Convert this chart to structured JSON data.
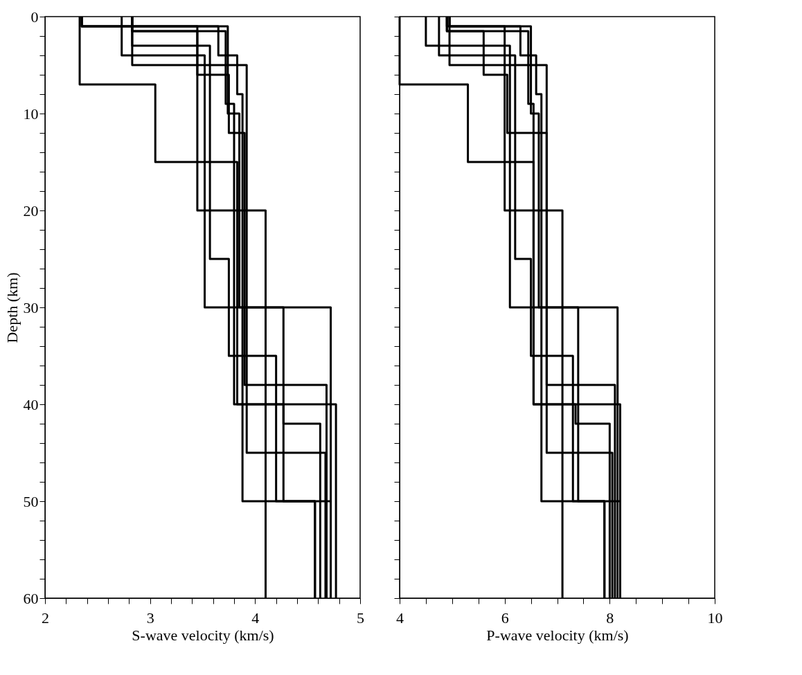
{
  "chart_data": [
    {
      "type": "line",
      "xlabel": "S-wave velocity (km/s)",
      "ylabel": "Depth (km)",
      "xlim": [
        2,
        5
      ],
      "ylim": [
        60,
        0
      ],
      "xticks": [
        2,
        {
          "value": 2.2,
          "label": null
        },
        {
          "value": 2.4,
          "label": null
        },
        {
          "value": 2.6,
          "label": null
        },
        {
          "value": 2.8,
          "label": null
        },
        3,
        {
          "value": 3.2,
          "label": null
        },
        {
          "value": 3.4,
          "label": null
        },
        {
          "value": 3.6,
          "label": null
        },
        {
          "value": 3.8,
          "label": null
        },
        4,
        {
          "value": 4.2,
          "label": null
        },
        {
          "value": 4.4,
          "label": null
        },
        {
          "value": 4.6,
          "label": null
        },
        {
          "value": 4.8,
          "label": null
        },
        5
      ],
      "yticks": [
        0,
        {
          "value": 2,
          "label": null
        },
        {
          "value": 4,
          "label": null
        },
        {
          "value": 6,
          "label": null
        },
        {
          "value": 8,
          "label": null
        },
        10,
        {
          "value": 12,
          "label": null
        },
        {
          "value": 14,
          "label": null
        },
        {
          "value": 16,
          "label": null
        },
        {
          "value": 18,
          "label": null
        },
        20,
        {
          "value": 22,
          "label": null
        },
        {
          "value": 24,
          "label": null
        },
        {
          "value": 26,
          "label": null
        },
        {
          "value": 28,
          "label": null
        },
        30,
        {
          "value": 32,
          "label": null
        },
        {
          "value": 34,
          "label": null
        },
        {
          "value": 36,
          "label": null
        },
        {
          "value": 38,
          "label": null
        },
        40,
        {
          "value": 42,
          "label": null
        },
        {
          "value": 44,
          "label": null
        },
        {
          "value": 46,
          "label": null
        },
        {
          "value": 48,
          "label": null
        },
        50,
        {
          "value": 52,
          "label": null
        },
        {
          "value": 54,
          "label": null
        },
        {
          "value": 56,
          "label": null
        },
        {
          "value": 58,
          "label": null
        },
        60
      ],
      "grid": false,
      "legend": false,
      "marker": "none",
      "line_style": "solid",
      "series": [
        {
          "color": "#000000",
          "x": [
            2.33,
            2.33,
            3.05,
            3.05,
            3.83,
            3.83,
            4.77,
            4.77
          ],
          "values": [
            0,
            7,
            7,
            15,
            15,
            40,
            40,
            60
          ]
        },
        {
          "color": "#000000",
          "x": [
            2.35,
            2.35,
            3.45,
            3.45,
            4.1,
            4.1
          ],
          "values": [
            0,
            1,
            1,
            20,
            20,
            60
          ]
        },
        {
          "color": "#000000",
          "x": [
            2.73,
            2.73,
            3.52,
            3.52,
            4.72,
            4.72
          ],
          "values": [
            0,
            4,
            4,
            30,
            30,
            60
          ]
        },
        {
          "color": "#000000",
          "x": [
            2.83,
            2.83,
            3.57,
            3.57,
            3.75,
            3.75,
            4.2,
            4.2,
            4.57,
            4.57
          ],
          "values": [
            0,
            3,
            3,
            25,
            25,
            35,
            35,
            50,
            50,
            60
          ]
        },
        {
          "color": "#000000",
          "x": [
            2.83,
            2.83,
            3.92,
            3.92,
            4.67,
            4.67
          ],
          "values": [
            0,
            5,
            5,
            45,
            45,
            60
          ]
        },
        {
          "color": "#000000",
          "x": [
            2.83,
            2.83,
            3.45,
            3.45,
            3.75,
            3.75,
            3.9,
            3.9,
            4.68,
            4.68
          ],
          "values": [
            0,
            1.5,
            1.5,
            6,
            6,
            12,
            12,
            38,
            38,
            60
          ]
        },
        {
          "color": "#000000",
          "x": [
            2.83,
            2.83,
            3.72,
            3.72,
            3.8,
            3.8,
            4.27,
            4.27,
            4.62,
            4.62
          ],
          "values": [
            0,
            1.5,
            1.5,
            9,
            9,
            40,
            40,
            42,
            42,
            60
          ]
        },
        {
          "color": "#000000",
          "x": [
            2.35,
            2.35,
            3.74,
            3.74,
            3.85,
            3.85,
            4.27,
            4.27,
            4.72,
            4.72
          ],
          "values": [
            0,
            1,
            1,
            10,
            10,
            30,
            30,
            50,
            50,
            60
          ]
        },
        {
          "color": "#000000",
          "x": [
            2.35,
            2.35,
            3.65,
            3.65,
            3.83,
            3.83,
            3.88,
            3.88,
            4.57,
            4.57
          ],
          "values": [
            0,
            1,
            1,
            4,
            4,
            8,
            8,
            50,
            50,
            60
          ]
        }
      ]
    },
    {
      "type": "line",
      "xlabel": "P-wave velocity (km/s)",
      "xlim": [
        4,
        10
      ],
      "ylim": [
        60,
        0
      ],
      "tick_labels": "x",
      "xticks": [
        4,
        {
          "value": 4.5,
          "label": null
        },
        {
          "value": 5,
          "label": null
        },
        {
          "value": 5.5,
          "label": null
        },
        6,
        {
          "value": 6.5,
          "label": null
        },
        {
          "value": 7,
          "label": null
        },
        {
          "value": 7.5,
          "label": null
        },
        8,
        {
          "value": 8.5,
          "label": null
        },
        {
          "value": 9,
          "label": null
        },
        {
          "value": 9.5,
          "label": null
        },
        10
      ],
      "yticks": [
        0,
        {
          "value": 2,
          "label": null
        },
        {
          "value": 4,
          "label": null
        },
        {
          "value": 6,
          "label": null
        },
        {
          "value": 8,
          "label": null
        },
        10,
        {
          "value": 12,
          "label": null
        },
        {
          "value": 14,
          "label": null
        },
        {
          "value": 16,
          "label": null
        },
        {
          "value": 18,
          "label": null
        },
        20,
        {
          "value": 22,
          "label": null
        },
        {
          "value": 24,
          "label": null
        },
        {
          "value": 26,
          "label": null
        },
        {
          "value": 28,
          "label": null
        },
        30,
        {
          "value": 32,
          "label": null
        },
        {
          "value": 34,
          "label": null
        },
        {
          "value": 36,
          "label": null
        },
        {
          "value": 38,
          "label": null
        },
        40,
        {
          "value": 42,
          "label": null
        },
        {
          "value": 44,
          "label": null
        },
        {
          "value": 46,
          "label": null
        },
        {
          "value": 48,
          "label": null
        },
        50,
        {
          "value": 52,
          "label": null
        },
        {
          "value": 54,
          "label": null
        },
        {
          "value": 56,
          "label": null
        },
        {
          "value": 58,
          "label": null
        },
        60
      ],
      "grid": false,
      "legend": false,
      "marker": "none",
      "line_style": "solid",
      "series": [
        {
          "color": "#000000",
          "x": [
            4.0,
            4.0,
            5.3,
            5.3,
            6.55,
            6.55,
            8.2,
            8.2
          ],
          "values": [
            0,
            7,
            7,
            15,
            15,
            40,
            40,
            60
          ]
        },
        {
          "color": "#000000",
          "x": [
            4.9,
            4.9,
            6.0,
            6.0,
            7.1,
            7.1
          ],
          "values": [
            0,
            1,
            1,
            20,
            20,
            60
          ]
        },
        {
          "color": "#000000",
          "x": [
            4.5,
            4.5,
            6.1,
            6.1,
            8.15,
            8.15
          ],
          "values": [
            0,
            3,
            3,
            30,
            30,
            60
          ]
        },
        {
          "color": "#000000",
          "x": [
            4.75,
            4.75,
            6.2,
            6.2,
            6.5,
            6.5,
            7.3,
            7.3,
            7.9,
            7.9
          ],
          "values": [
            0,
            4,
            4,
            25,
            25,
            35,
            35,
            50,
            50,
            60
          ]
        },
        {
          "color": "#000000",
          "x": [
            4.95,
            4.95,
            6.8,
            6.8,
            8.05,
            8.05
          ],
          "values": [
            0,
            5,
            5,
            45,
            45,
            60
          ]
        },
        {
          "color": "#000000",
          "x": [
            4.9,
            4.9,
            5.6,
            5.6,
            6.05,
            6.05,
            6.8,
            6.8,
            8.1,
            8.1
          ],
          "values": [
            0,
            1.5,
            1.5,
            6,
            6,
            12,
            12,
            38,
            38,
            60
          ]
        },
        {
          "color": "#000000",
          "x": [
            4.9,
            4.9,
            6.45,
            6.45,
            6.55,
            6.55,
            7.35,
            7.35,
            8.0,
            8.0
          ],
          "values": [
            0,
            1.5,
            1.5,
            9,
            9,
            40,
            40,
            42,
            42,
            60
          ]
        },
        {
          "color": "#000000",
          "x": [
            4.95,
            4.95,
            6.5,
            6.5,
            6.65,
            6.65,
            7.4,
            7.4,
            8.2,
            8.2
          ],
          "values": [
            0,
            1,
            1,
            10,
            10,
            30,
            30,
            50,
            50,
            60
          ]
        },
        {
          "color": "#000000",
          "x": [
            4.95,
            4.95,
            6.3,
            6.3,
            6.6,
            6.6,
            6.7,
            6.7,
            7.9,
            7.9
          ],
          "values": [
            0,
            1,
            1,
            4,
            4,
            8,
            8,
            50,
            50,
            60
          ]
        }
      ]
    }
  ]
}
